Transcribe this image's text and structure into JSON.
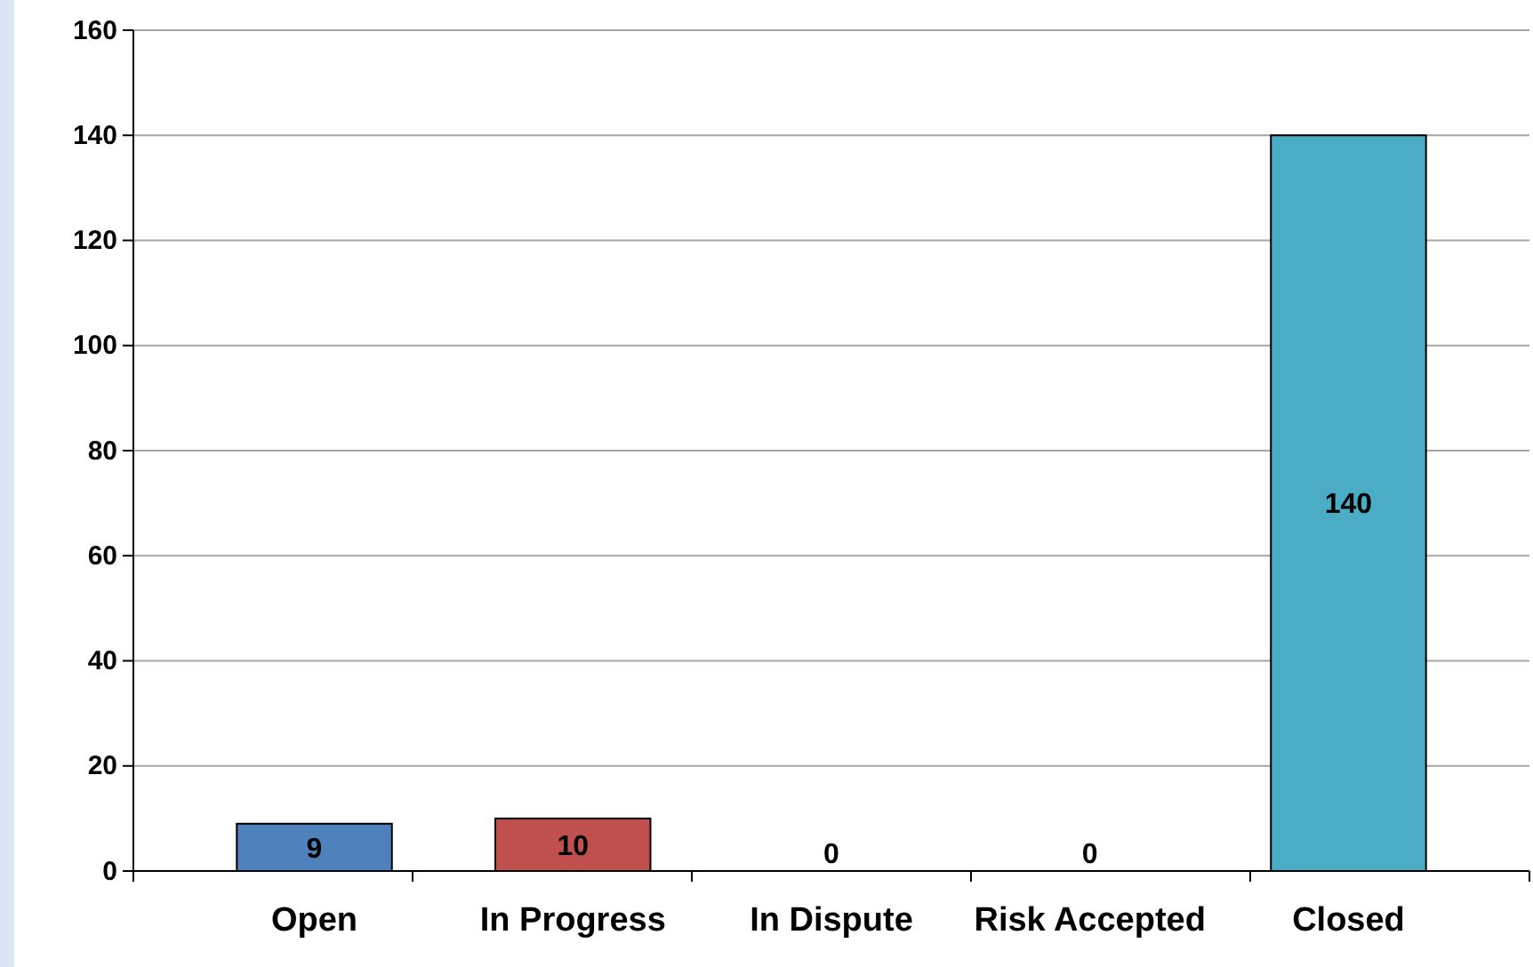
{
  "chart_data": {
    "type": "bar",
    "categories": [
      "Open",
      "In Progress",
      "In Dispute",
      "Risk Accepted",
      "Closed"
    ],
    "values": [
      9,
      10,
      0,
      0,
      140
    ],
    "colors": [
      "#4f81bd",
      "#c0504d",
      "#9bbb59",
      "#8064a2",
      "#4bacc6"
    ],
    "ylim": [
      0,
      160
    ],
    "yticks": [
      0,
      20,
      40,
      60,
      80,
      100,
      120,
      140,
      160
    ],
    "grid": "y",
    "data_labels": true
  }
}
